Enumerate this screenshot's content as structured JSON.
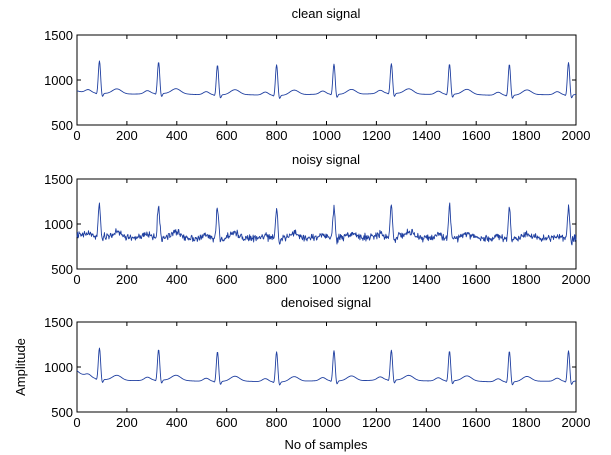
{
  "figure": {
    "xlabel": "No of samples",
    "ylabel": "Amplitude"
  },
  "chart_data": [
    {
      "type": "line",
      "title": "clean signal",
      "xlim": [
        0,
        2000
      ],
      "ylim": [
        500,
        1500
      ],
      "xticks": [
        "0",
        "200",
        "400",
        "600",
        "800",
        "1000",
        "1200",
        "1400",
        "1600",
        "1800",
        "2000"
      ],
      "yticks": [
        "500",
        "1000",
        "1500"
      ],
      "series": [
        {
          "color": "#1f3fa0",
          "noise": 0,
          "baseline": 840,
          "start_value": 880,
          "peak_x": [
            90,
            327,
            563,
            800,
            1030,
            1260,
            1493,
            1733,
            1970
          ],
          "peak_y": [
            1200,
            1190,
            1170,
            1180,
            1175,
            1170,
            1175,
            1185,
            1200
          ]
        }
      ]
    },
    {
      "type": "line",
      "title": "noisy signal",
      "xlim": [
        0,
        2000
      ],
      "ylim": [
        500,
        1500
      ],
      "xticks": [
        "0",
        "200",
        "400",
        "600",
        "800",
        "1000",
        "1200",
        "1400",
        "1600",
        "1800",
        "2000"
      ],
      "yticks": [
        "500",
        "1000",
        "1500"
      ],
      "series": [
        {
          "color": "#1f3fa0",
          "noise": 40,
          "baseline": 845,
          "start_value": 880,
          "peak_x": [
            90,
            327,
            563,
            800,
            1030,
            1260,
            1493,
            1733,
            1970
          ],
          "peak_y": [
            1210,
            1195,
            1200,
            1200,
            1190,
            1195,
            1200,
            1195,
            1210
          ]
        }
      ]
    },
    {
      "type": "line",
      "title": "denoised signal",
      "xlim": [
        0,
        2000
      ],
      "ylim": [
        500,
        1500
      ],
      "xticks": [
        "0",
        "200",
        "400",
        "600",
        "800",
        "1000",
        "1200",
        "1400",
        "1600",
        "1800",
        "2000"
      ],
      "yticks": [
        "500",
        "1000",
        "1500"
      ],
      "series": [
        {
          "color": "#1f3fa0",
          "noise": 0,
          "baseline": 845,
          "start_value": 960,
          "peak_x": [
            90,
            327,
            563,
            800,
            1030,
            1260,
            1493,
            1733,
            1970
          ],
          "peak_y": [
            1190,
            1185,
            1175,
            1180,
            1180,
            1175,
            1175,
            1185,
            1185
          ]
        }
      ]
    }
  ]
}
